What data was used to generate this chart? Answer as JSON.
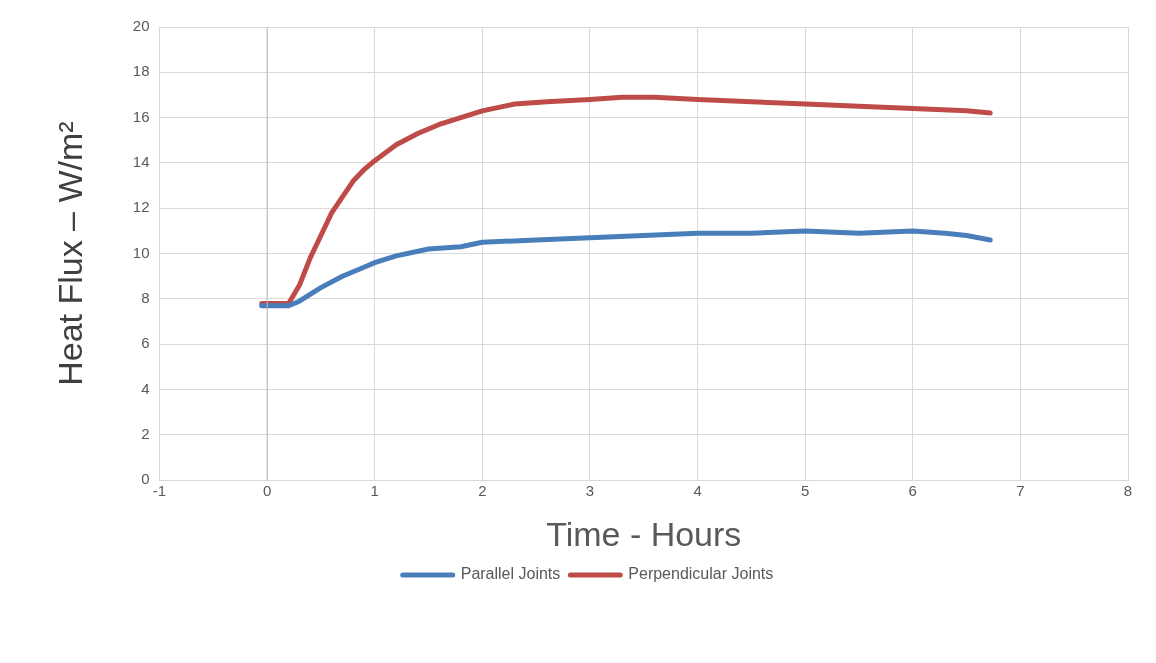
{
  "chart_data": {
    "type": "line",
    "xlabel": "Time - Hours",
    "ylabel": "Heat Flux – W/m²",
    "xlim": [
      -1,
      8
    ],
    "xticks": [
      -1,
      0,
      1,
      2,
      3,
      4,
      5,
      6,
      7,
      8
    ],
    "ylim": [
      0,
      20
    ],
    "yticks": [
      0,
      2,
      4,
      6,
      8,
      10,
      12,
      14,
      16,
      18,
      20
    ],
    "grid": true,
    "legend": "bottom",
    "marker": "none",
    "line_style": "solid",
    "series": [
      {
        "name": "Parallel Joints",
        "color": "#4a7ebb",
        "x": [
          -0.05,
          0.2,
          0.3,
          0.5,
          0.7,
          0.9,
          1.0,
          1.2,
          1.5,
          1.8,
          2.0,
          2.5,
          3.0,
          3.5,
          4.0,
          4.5,
          5.0,
          5.5,
          6.0,
          6.3,
          6.5,
          6.72
        ],
        "values": [
          7.7,
          7.7,
          7.9,
          8.5,
          9.0,
          9.4,
          9.6,
          9.9,
          10.2,
          10.3,
          10.5,
          10.6,
          10.7,
          10.8,
          10.9,
          10.9,
          11.0,
          10.9,
          11.0,
          10.9,
          10.8,
          10.6
        ]
      },
      {
        "name": "Perpendicular Joints",
        "color": "#be4b48",
        "x": [
          -0.05,
          0.2,
          0.3,
          0.4,
          0.5,
          0.6,
          0.7,
          0.8,
          0.9,
          1.0,
          1.2,
          1.4,
          1.6,
          1.8,
          2.0,
          2.3,
          2.6,
          3.0,
          3.3,
          3.6,
          4.0,
          4.5,
          5.0,
          5.5,
          6.0,
          6.5,
          6.72
        ],
        "values": [
          7.8,
          7.8,
          8.6,
          9.8,
          10.8,
          11.8,
          12.5,
          13.2,
          13.7,
          14.1,
          14.8,
          15.3,
          15.7,
          16.0,
          16.3,
          16.6,
          16.7,
          16.8,
          16.9,
          16.9,
          16.8,
          16.7,
          16.6,
          16.5,
          16.4,
          16.3,
          16.2
        ]
      }
    ]
  }
}
